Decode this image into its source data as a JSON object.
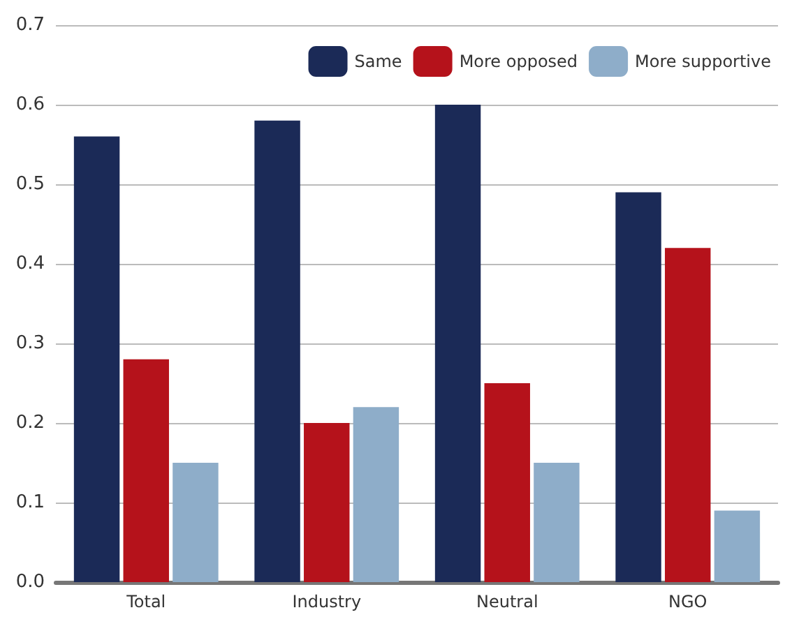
{
  "chart_data": {
    "type": "bar",
    "categories": [
      "Total",
      "Industry",
      "Neutral",
      "NGO"
    ],
    "series": [
      {
        "name": "Same",
        "color": "#1b2a57",
        "values": [
          0.56,
          0.58,
          0.6,
          0.49
        ]
      },
      {
        "name": "More opposed",
        "color": "#b5121b",
        "values": [
          0.28,
          0.2,
          0.25,
          0.42
        ]
      },
      {
        "name": "More supportive",
        "color": "#8eadc9",
        "values": [
          0.15,
          0.22,
          0.15,
          0.09
        ]
      }
    ],
    "ylim": [
      0,
      0.7
    ],
    "yticks": [
      {
        "value": 0,
        "label": "0.0"
      },
      0.1,
      0.2,
      0.3,
      0.4,
      0.5,
      0.6,
      0.7
    ],
    "grid": "y",
    "legend": "top right"
  }
}
